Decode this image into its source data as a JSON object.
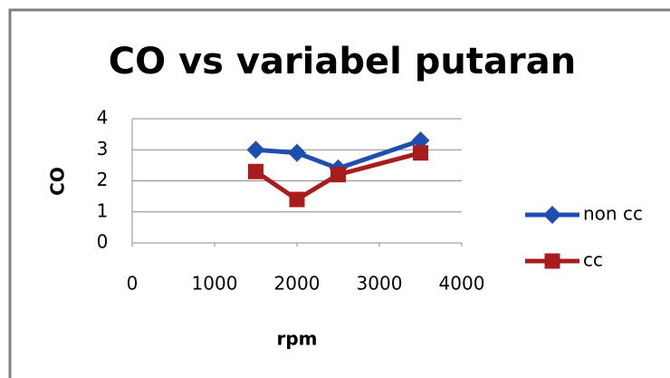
{
  "chart_data": {
    "type": "line",
    "title": "CO vs variabel putaran",
    "x_label": "rpm",
    "y_label": "CO",
    "x": [
      1500,
      2000,
      2500,
      3500
    ],
    "series": [
      {
        "name": "non cc",
        "color": "#1f4fae",
        "marker": "diamond",
        "values": [
          3.0,
          2.9,
          2.4,
          3.3
        ]
      },
      {
        "name": "cc",
        "color": "#a81c1c",
        "marker": "square",
        "values": [
          2.3,
          1.4,
          2.2,
          2.9
        ]
      }
    ],
    "xlim": [
      0,
      4000
    ],
    "xticks": [
      0,
      1000,
      2000,
      3000,
      4000
    ],
    "ylim": [
      0,
      4
    ],
    "yticks": [
      0,
      1,
      2,
      3,
      4
    ],
    "grid": true,
    "legend": "right"
  }
}
